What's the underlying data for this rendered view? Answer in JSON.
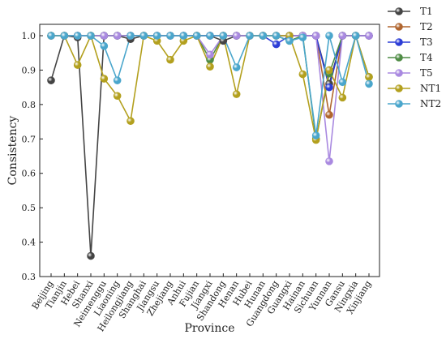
{
  "chart_data": {
    "type": "line",
    "title": "",
    "xlabel": "Province",
    "ylabel": "Consistency",
    "ylim": [
      0.3,
      1.0
    ],
    "yticks": [
      0.3,
      0.4,
      0.5,
      0.6,
      0.7,
      0.8,
      0.9,
      1.0
    ],
    "ytick_labels": [
      "0.3",
      "0.4",
      "0.5",
      "0.6",
      "0.7",
      "0.8",
      "0.9",
      "1.0"
    ],
    "grid": false,
    "legend_position": "right",
    "categories": [
      "Beijing",
      "Tianjin",
      "Hebei",
      "Shanxi",
      "Neimenggu",
      "Liaoning",
      "Heilongjiang",
      "Shanghai",
      "Jiangsu",
      "Zhejiang",
      "Anhui",
      "Fujian",
      "Jiangxi",
      "Shandong",
      "Henan",
      "Hubei",
      "Hunan",
      "Guangdong",
      "Guangxi",
      "Hainan",
      "Sichuan",
      "Yunnan",
      "Gansu",
      "Ningxia",
      "Xinjiang"
    ],
    "series": [
      {
        "name": "T1",
        "color": "#444444",
        "values": [
          0.87,
          1.0,
          0.995,
          0.36,
          1.0,
          1.0,
          0.99,
          1.0,
          1.0,
          1.0,
          1.0,
          1.0,
          1.0,
          0.985,
          1.0,
          1.0,
          1.0,
          1.0,
          1.0,
          1.0,
          1.0,
          0.86,
          1.0,
          1.0,
          1.0
        ]
      },
      {
        "name": "T2",
        "color": "#b0652e",
        "values": [
          1.0,
          1.0,
          1.0,
          1.0,
          1.0,
          1.0,
          1.0,
          1.0,
          1.0,
          1.0,
          1.0,
          1.0,
          1.0,
          1.0,
          1.0,
          1.0,
          1.0,
          1.0,
          1.0,
          1.0,
          1.0,
          0.77,
          1.0,
          1.0,
          1.0
        ]
      },
      {
        "name": "T3",
        "color": "#2c3dd6",
        "values": [
          1.0,
          1.0,
          1.0,
          1.0,
          1.0,
          1.0,
          1.0,
          1.0,
          1.0,
          1.0,
          1.0,
          1.0,
          1.0,
          1.0,
          1.0,
          1.0,
          1.0,
          0.975,
          1.0,
          1.0,
          1.0,
          0.85,
          1.0,
          1.0,
          1.0
        ]
      },
      {
        "name": "T4",
        "color": "#4f8c45",
        "values": [
          1.0,
          1.0,
          1.0,
          1.0,
          1.0,
          1.0,
          1.0,
          1.0,
          1.0,
          1.0,
          1.0,
          1.0,
          0.93,
          1.0,
          1.0,
          1.0,
          1.0,
          1.0,
          0.985,
          1.0,
          0.7,
          0.89,
          1.0,
          1.0,
          0.88
        ]
      },
      {
        "name": "T5",
        "color": "#a989e0",
        "values": [
          1.0,
          1.0,
          1.0,
          1.0,
          1.0,
          1.0,
          1.0,
          1.0,
          1.0,
          1.0,
          1.0,
          1.0,
          0.945,
          1.0,
          1.0,
          1.0,
          1.0,
          1.0,
          1.0,
          1.0,
          1.0,
          0.635,
          1.0,
          1.0,
          1.0
        ]
      },
      {
        "name": "NT1",
        "color": "#b3a01e",
        "values": [
          1.0,
          1.0,
          0.915,
          1.0,
          0.875,
          0.825,
          0.752,
          1.0,
          0.985,
          0.93,
          0.985,
          1.0,
          0.91,
          1.0,
          0.83,
          1.0,
          1.0,
          1.0,
          1.0,
          0.888,
          0.697,
          0.9,
          0.82,
          1.0,
          0.88
        ]
      },
      {
        "name": "NT2",
        "color": "#4aa6cc",
        "values": [
          1.0,
          1.0,
          1.0,
          1.0,
          0.97,
          0.87,
          1.0,
          1.0,
          1.0,
          1.0,
          1.0,
          1.0,
          1.0,
          1.0,
          0.908,
          1.0,
          1.0,
          1.0,
          0.985,
          0.995,
          0.71,
          1.0,
          0.865,
          1.0,
          0.86
        ]
      }
    ]
  }
}
